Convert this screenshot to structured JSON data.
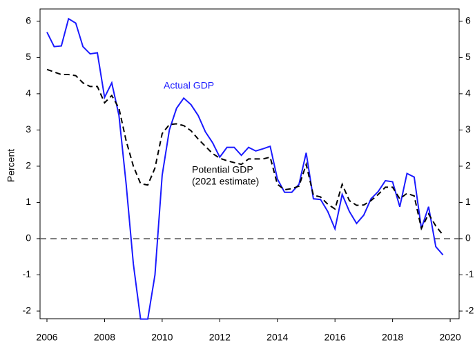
{
  "chart_data": {
    "type": "line",
    "y_label": "Percent",
    "x": [
      2006,
      2006.25,
      2006.5,
      2006.75,
      2007,
      2007.25,
      2007.5,
      2007.75,
      2008,
      2008.25,
      2008.5,
      2008.75,
      2009,
      2009.25,
      2009.5,
      2009.75,
      2010,
      2010.25,
      2010.5,
      2010.75,
      2011,
      2011.25,
      2011.5,
      2011.75,
      2012,
      2012.25,
      2012.5,
      2012.75,
      2013,
      2013.25,
      2013.5,
      2013.75,
      2014,
      2014.25,
      2014.5,
      2014.75,
      2015,
      2015.25,
      2015.5,
      2015.75,
      2016,
      2016.25,
      2016.5,
      2016.75,
      2017,
      2017.25,
      2017.5,
      2017.75,
      2018,
      2018.25,
      2018.5,
      2018.75,
      2019,
      2019.25,
      2019.5,
      2019.75
    ],
    "series": [
      {
        "name": "Actual GDP",
        "color": "#1a1aff",
        "dashed": false,
        "values": [
          5.7,
          5.3,
          5.32,
          6.07,
          5.95,
          5.3,
          5.1,
          5.13,
          3.9,
          4.3,
          3.4,
          1.5,
          -0.7,
          -2.22,
          -2.22,
          -1.0,
          1.75,
          3.0,
          3.6,
          3.88,
          3.7,
          3.4,
          2.95,
          2.65,
          2.25,
          2.52,
          2.52,
          2.3,
          2.52,
          2.42,
          2.48,
          2.55,
          1.65,
          1.28,
          1.28,
          1.5,
          2.37,
          1.1,
          1.08,
          0.75,
          0.27,
          1.22,
          0.75,
          0.42,
          0.65,
          1.1,
          1.3,
          1.6,
          1.57,
          0.88,
          1.8,
          1.7,
          0.28,
          0.88,
          -0.22,
          -0.45
        ]
      },
      {
        "name": "Potential GDP",
        "color": "#000000",
        "dashed": true,
        "values": [
          4.67,
          4.6,
          4.53,
          4.53,
          4.5,
          4.3,
          4.2,
          4.2,
          3.75,
          3.95,
          3.6,
          2.7,
          2.0,
          1.52,
          1.48,
          1.95,
          2.9,
          3.15,
          3.17,
          3.12,
          2.98,
          2.75,
          2.55,
          2.35,
          2.22,
          2.15,
          2.1,
          2.05,
          2.2,
          2.2,
          2.2,
          2.25,
          1.5,
          1.35,
          1.38,
          1.45,
          2.05,
          1.2,
          1.15,
          0.95,
          0.82,
          1.5,
          1.05,
          0.92,
          0.93,
          1.05,
          1.22,
          1.42,
          1.42,
          1.1,
          1.25,
          1.18,
          0.28,
          0.68,
          0.35,
          0.1
        ]
      }
    ],
    "annotation": "(2021 estimate)",
    "reference_line": 0,
    "xlim": [
      2005.76,
      2020.31
    ],
    "xticks": [
      2006,
      2008,
      2010,
      2012,
      2014,
      2016,
      2018,
      2020
    ],
    "ylim": [
      -2.21,
      6.34
    ],
    "yticks": [
      -2,
      -1,
      0,
      1,
      2,
      3,
      4,
      5,
      6
    ]
  }
}
